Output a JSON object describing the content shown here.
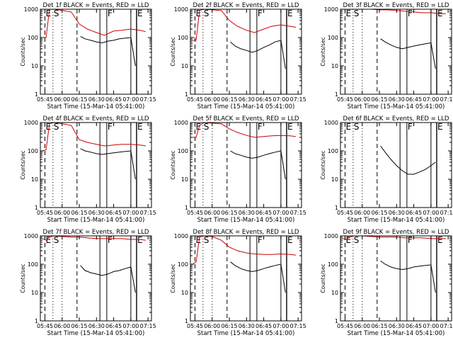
{
  "chart_data": [
    {
      "type": "line",
      "title": "Det 1f BLACK = Events, RED = LLD",
      "xlabel": "Start Time (15-Mar-14 05:41:00)",
      "ylabel": "Counts/sec",
      "x_ticks": [
        "05:45",
        "06:00",
        "06:15",
        "06:30",
        "06:45",
        "07:00",
        "07:15"
      ],
      "y_ticks": [
        "1",
        "10",
        "100",
        "1000"
      ],
      "yscale": "log",
      "ylim": [
        1,
        1000
      ],
      "markers": [
        {
          "label": "E",
          "time": "05:45"
        },
        {
          "label": "S",
          "time": "05:52"
        },
        {
          "label": "F",
          "time": "06:39"
        },
        {
          "label": "E",
          "time": "07:05"
        }
      ],
      "series": [
        {
          "name": "Events",
          "color": "#000000",
          "x": [
            "06:16",
            "06:20",
            "06:25",
            "06:30",
            "06:35",
            "06:40",
            "06:45",
            "06:50",
            "06:55",
            "07:00",
            "07:04"
          ],
          "y": [
            110,
            90,
            80,
            70,
            65,
            75,
            80,
            90,
            95,
            100,
            10
          ]
        },
        {
          "name": "LLD",
          "color": "#cc0000",
          "x": [
            "05:43",
            "05:46",
            "05:49",
            "05:53",
            "06:00",
            "06:08",
            "06:15",
            "06:22",
            "06:30",
            "06:37",
            "06:45",
            "06:52",
            "07:00",
            "07:08",
            "07:13"
          ],
          "y": [
            100,
            100,
            1000,
            1000,
            900,
            800,
            300,
            200,
            150,
            120,
            170,
            180,
            200,
            180,
            160
          ]
        }
      ]
    },
    {
      "type": "line",
      "title": "Det 2f BLACK = Events, RED = LLD",
      "xlabel": "Start Time (15-Mar-14 05:41:00)",
      "ylabel": "Counts/sec",
      "x_ticks": [
        "05:45",
        "06:00",
        "06:15",
        "06:30",
        "06:45",
        "07:00",
        "07:15"
      ],
      "y_ticks": [
        "1",
        "10",
        "100",
        "1000"
      ],
      "yscale": "log",
      "ylim": [
        1,
        1000
      ],
      "markers": [
        {
          "label": "E",
          "time": "05:45"
        },
        {
          "label": "S",
          "time": "05:52"
        },
        {
          "label": "F",
          "time": "06:39"
        },
        {
          "label": "E",
          "time": "07:05"
        }
      ],
      "series": [
        {
          "name": "Events",
          "color": "#000000",
          "x": [
            "06:16",
            "06:20",
            "06:25",
            "06:30",
            "06:35",
            "06:40",
            "06:45",
            "06:50",
            "06:55",
            "07:00",
            "07:04"
          ],
          "y": [
            70,
            50,
            40,
            35,
            30,
            35,
            45,
            55,
            70,
            80,
            8
          ]
        },
        {
          "name": "LLD",
          "color": "#cc0000",
          "x": [
            "05:43",
            "05:46",
            "05:49",
            "05:53",
            "06:00",
            "06:08",
            "06:15",
            "06:22",
            "06:30",
            "06:37",
            "06:45",
            "06:52",
            "07:00",
            "07:08",
            "07:13"
          ],
          "y": [
            80,
            80,
            900,
            1000,
            950,
            900,
            400,
            250,
            180,
            150,
            200,
            250,
            280,
            250,
            230
          ]
        }
      ]
    },
    {
      "type": "line",
      "title": "Det 3f BLACK = Events, RED = LLD",
      "xlabel": "Start Time (15-Mar-14 05:41:00)",
      "ylabel": "Counts/sec",
      "x_ticks": [
        "05:45",
        "06:00",
        "06:15",
        "06:30",
        "06:45",
        "07:00",
        "07:15"
      ],
      "y_ticks": [
        "1",
        "10",
        "100",
        "1000"
      ],
      "yscale": "log",
      "ylim": [
        1,
        1000
      ],
      "markers": [
        {
          "label": "E",
          "time": "05:45"
        },
        {
          "label": "S",
          "time": "05:52"
        },
        {
          "label": "F",
          "time": "06:39"
        },
        {
          "label": "E",
          "time": "07:05"
        }
      ],
      "series": [
        {
          "name": "Events",
          "color": "#000000",
          "x": [
            "06:16",
            "06:20",
            "06:25",
            "06:30",
            "06:35",
            "06:40",
            "06:45",
            "06:50",
            "06:55",
            "07:00",
            "07:04"
          ],
          "y": [
            90,
            70,
            55,
            45,
            40,
            45,
            50,
            55,
            60,
            65,
            8
          ]
        },
        {
          "name": "LLD",
          "color": "#cc0000",
          "x": [
            "05:43",
            "05:46",
            "05:49",
            "05:53",
            "06:00",
            "06:08",
            "06:15",
            "06:22",
            "06:30",
            "06:37",
            "06:45",
            "06:52",
            "07:00",
            "07:08",
            "07:13"
          ],
          "y": [
            1000,
            1000,
            1000,
            1000,
            1000,
            1000,
            950,
            950,
            900,
            850,
            800,
            750,
            750,
            700,
            700
          ]
        }
      ]
    },
    {
      "type": "line",
      "title": "Det 4f BLACK = Events, RED = LLD",
      "xlabel": "Start Time (15-Mar-14 05:41:00)",
      "ylabel": "Counts/sec",
      "x_ticks": [
        "05:45",
        "06:00",
        "06:15",
        "06:30",
        "06:45",
        "07:00",
        "07:15"
      ],
      "y_ticks": [
        "1",
        "10",
        "100",
        "1000"
      ],
      "yscale": "log",
      "ylim": [
        1,
        1000
      ],
      "markers": [
        {
          "label": "E",
          "time": "05:45"
        },
        {
          "label": "S",
          "time": "05:52"
        },
        {
          "label": "F",
          "time": "06:39"
        },
        {
          "label": "E",
          "time": "07:05"
        }
      ],
      "series": [
        {
          "name": "Events",
          "color": "#000000",
          "x": [
            "06:16",
            "06:20",
            "06:25",
            "06:30",
            "06:35",
            "06:40",
            "06:45",
            "06:50",
            "06:55",
            "07:00",
            "07:04"
          ],
          "y": [
            120,
            100,
            90,
            80,
            75,
            80,
            85,
            90,
            95,
            100,
            10
          ]
        },
        {
          "name": "LLD",
          "color": "#cc0000",
          "x": [
            "05:43",
            "05:46",
            "05:49",
            "05:53",
            "06:00",
            "06:08",
            "06:15",
            "06:22",
            "06:30",
            "06:37",
            "06:45",
            "06:52",
            "07:00",
            "07:08",
            "07:13"
          ],
          "y": [
            100,
            110,
            900,
            1000,
            900,
            800,
            250,
            200,
            170,
            150,
            160,
            170,
            170,
            160,
            150
          ]
        }
      ]
    },
    {
      "type": "line",
      "title": "Det 5f BLACK = Events, RED = LLD",
      "xlabel": "Start Time (15-Mar-14 05:41:00)",
      "ylabel": "Counts/sec",
      "x_ticks": [
        "05:45",
        "06:00",
        "06:15",
        "06:30",
        "06:45",
        "07:00",
        "07:15"
      ],
      "y_ticks": [
        "1",
        "10",
        "100",
        "1000"
      ],
      "yscale": "log",
      "ylim": [
        1,
        1000
      ],
      "markers": [
        {
          "label": "E",
          "time": "05:45"
        },
        {
          "label": "S",
          "time": "05:52"
        },
        {
          "label": "F",
          "time": "06:39"
        },
        {
          "label": "E",
          "time": "07:05"
        }
      ],
      "series": [
        {
          "name": "Events",
          "color": "#000000",
          "x": [
            "06:16",
            "06:20",
            "06:25",
            "06:30",
            "06:35",
            "06:40",
            "06:45",
            "06:50",
            "06:55",
            "07:00",
            "07:04"
          ],
          "y": [
            100,
            80,
            70,
            60,
            55,
            60,
            70,
            80,
            90,
            100,
            10
          ]
        },
        {
          "name": "LLD",
          "color": "#cc0000",
          "x": [
            "05:43",
            "05:46",
            "05:49",
            "05:53",
            "06:00",
            "06:08",
            "06:15",
            "06:22",
            "06:30",
            "06:37",
            "06:45",
            "06:52",
            "07:00",
            "07:08",
            "07:13"
          ],
          "y": [
            300,
            300,
            800,
            1000,
            950,
            900,
            600,
            450,
            350,
            300,
            320,
            340,
            350,
            340,
            320
          ]
        }
      ]
    },
    {
      "type": "line",
      "title": "Det 6f BLACK = Events, RED = LLD",
      "xlabel": "Start Time (15-Mar-14 05:41:00)",
      "ylabel": "Counts/sec",
      "x_ticks": [
        "05:45",
        "06:00",
        "06:15",
        "06:30",
        "06:45",
        "07:00",
        "07:15"
      ],
      "y_ticks": [
        "1",
        "10",
        "100",
        "1000"
      ],
      "yscale": "log",
      "ylim": [
        1,
        1000
      ],
      "markers": [
        {
          "label": "E",
          "time": "05:45"
        },
        {
          "label": "S",
          "time": "05:52"
        },
        {
          "label": "F",
          "time": "06:39"
        },
        {
          "label": "E",
          "time": "07:05"
        }
      ],
      "series": [
        {
          "name": "Events",
          "color": "#000000",
          "x": [
            "06:16",
            "06:20",
            "06:25",
            "06:30",
            "06:35",
            "06:40",
            "06:45",
            "06:50",
            "06:55",
            "07:00",
            "07:04"
          ],
          "y": [
            150,
            90,
            50,
            30,
            20,
            15,
            15,
            18,
            22,
            30,
            40
          ]
        }
      ]
    },
    {
      "type": "line",
      "title": "Det 7f BLACK = Events, RED = LLD",
      "xlabel": "Start Time (15-Mar-14 05:41:00)",
      "ylabel": "Counts/sec",
      "x_ticks": [
        "05:45",
        "06:00",
        "06:15",
        "06:30",
        "06:45",
        "07:00",
        "07:15"
      ],
      "y_ticks": [
        "1",
        "10",
        "100",
        "1000"
      ],
      "yscale": "log",
      "ylim": [
        1,
        1000
      ],
      "markers": [
        {
          "label": "E",
          "time": "05:45"
        },
        {
          "label": "S",
          "time": "05:52"
        },
        {
          "label": "F",
          "time": "06:39"
        },
        {
          "label": "E",
          "time": "07:05"
        }
      ],
      "series": [
        {
          "name": "Events",
          "color": "#000000",
          "x": [
            "06:16",
            "06:20",
            "06:25",
            "06:30",
            "06:35",
            "06:40",
            "06:45",
            "06:50",
            "06:55",
            "07:00",
            "07:04"
          ],
          "y": [
            90,
            60,
            50,
            45,
            40,
            45,
            55,
            60,
            70,
            80,
            10
          ]
        },
        {
          "name": "LLD",
          "color": "#cc0000",
          "x": [
            "05:43",
            "05:46",
            "05:49",
            "05:53",
            "06:00",
            "06:08",
            "06:15",
            "06:22",
            "06:30",
            "06:37",
            "06:45",
            "06:52",
            "07:00",
            "07:08",
            "07:13"
          ],
          "y": [
            800,
            700,
            900,
            1000,
            950,
            900,
            900,
            850,
            800,
            800,
            800,
            800,
            750,
            750,
            700
          ]
        }
      ]
    },
    {
      "type": "line",
      "title": "Det 8f BLACK = Events, RED = LLD",
      "xlabel": "Start Time (15-Mar-14 05:41:00)",
      "ylabel": "Counts/sec",
      "x_ticks": [
        "05:45",
        "06:00",
        "06:15",
        "06:30",
        "06:45",
        "07:00",
        "07:15"
      ],
      "y_ticks": [
        "1",
        "10",
        "100",
        "1000"
      ],
      "yscale": "log",
      "ylim": [
        1,
        1000
      ],
      "markers": [
        {
          "label": "E",
          "time": "05:45"
        },
        {
          "label": "S",
          "time": "05:52"
        },
        {
          "label": "F",
          "time": "06:39"
        },
        {
          "label": "E",
          "time": "07:05"
        }
      ],
      "series": [
        {
          "name": "Events",
          "color": "#000000",
          "x": [
            "06:16",
            "06:20",
            "06:25",
            "06:30",
            "06:35",
            "06:40",
            "06:45",
            "06:50",
            "06:55",
            "07:00",
            "07:04"
          ],
          "y": [
            120,
            90,
            70,
            60,
            55,
            60,
            70,
            80,
            90,
            100,
            10
          ]
        },
        {
          "name": "LLD",
          "color": "#cc0000",
          "x": [
            "05:43",
            "05:46",
            "05:49",
            "05:53",
            "06:00",
            "06:08",
            "06:15",
            "06:22",
            "06:30",
            "06:37",
            "06:45",
            "06:52",
            "07:00",
            "07:08",
            "07:13"
          ],
          "y": [
            100,
            120,
            900,
            1000,
            950,
            700,
            400,
            300,
            250,
            230,
            220,
            220,
            230,
            220,
            210
          ]
        }
      ]
    },
    {
      "type": "line",
      "title": "Det 9f BLACK = Events, RED = LLD",
      "xlabel": "Start Time (15-Mar-14 05:41:00)",
      "ylabel": "Counts/sec",
      "x_ticks": [
        "05:45",
        "06:00",
        "06:15",
        "06:30",
        "06:45",
        "07:00",
        "07:15"
      ],
      "y_ticks": [
        "1",
        "10",
        "100",
        "1000"
      ],
      "yscale": "log",
      "ylim": [
        1,
        1000
      ],
      "markers": [
        {
          "label": "E",
          "time": "05:45"
        },
        {
          "label": "S",
          "time": "05:52"
        },
        {
          "label": "F",
          "time": "06:39"
        },
        {
          "label": "E",
          "time": "07:05"
        }
      ],
      "series": [
        {
          "name": "Events",
          "color": "#000000",
          "x": [
            "06:16",
            "06:20",
            "06:25",
            "06:30",
            "06:35",
            "06:40",
            "06:45",
            "06:50",
            "06:55",
            "07:00",
            "07:04"
          ],
          "y": [
            130,
            100,
            80,
            70,
            65,
            70,
            80,
            85,
            90,
            95,
            10
          ]
        },
        {
          "name": "LLD",
          "color": "#cc0000",
          "x": [
            "05:43",
            "05:46",
            "05:49",
            "05:53",
            "06:00",
            "06:08",
            "06:15",
            "06:22",
            "06:30",
            "06:37",
            "06:45",
            "06:52",
            "07:00",
            "07:08",
            "07:13"
          ],
          "y": [
            800,
            750,
            900,
            1000,
            1000,
            950,
            900,
            900,
            900,
            850,
            850,
            850,
            800,
            800,
            800
          ]
        }
      ]
    }
  ]
}
